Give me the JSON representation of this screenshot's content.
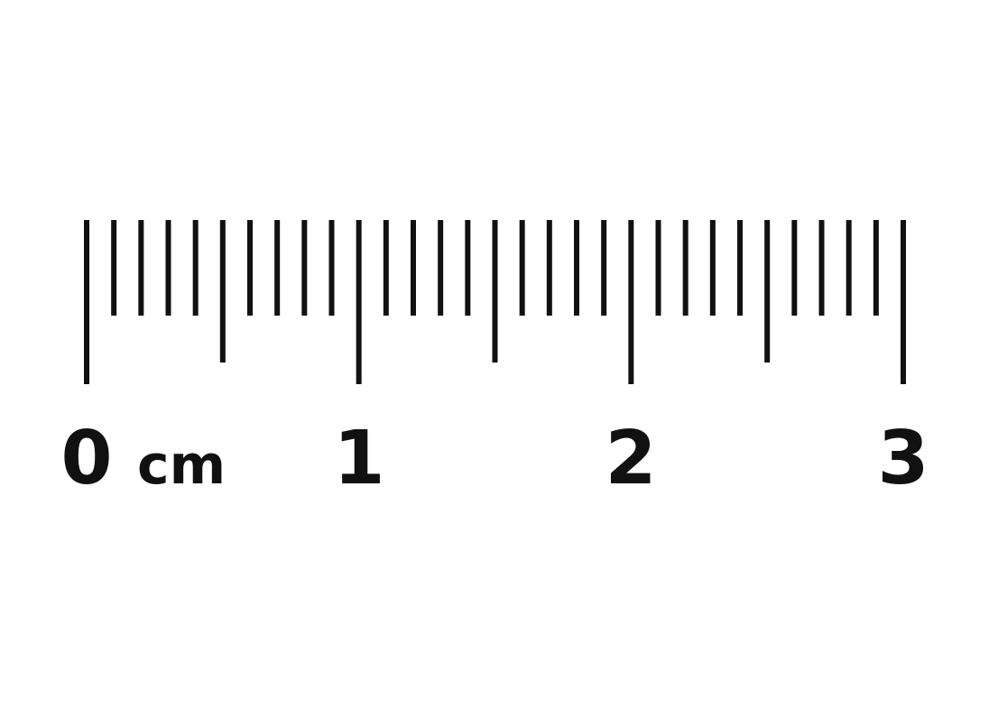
{
  "ruler": {
    "unit": "cm",
    "range": [
      0,
      3
    ],
    "divisions_per_unit": 10,
    "labels": [
      "0",
      "1",
      "2",
      "3"
    ],
    "color": "#111111"
  }
}
